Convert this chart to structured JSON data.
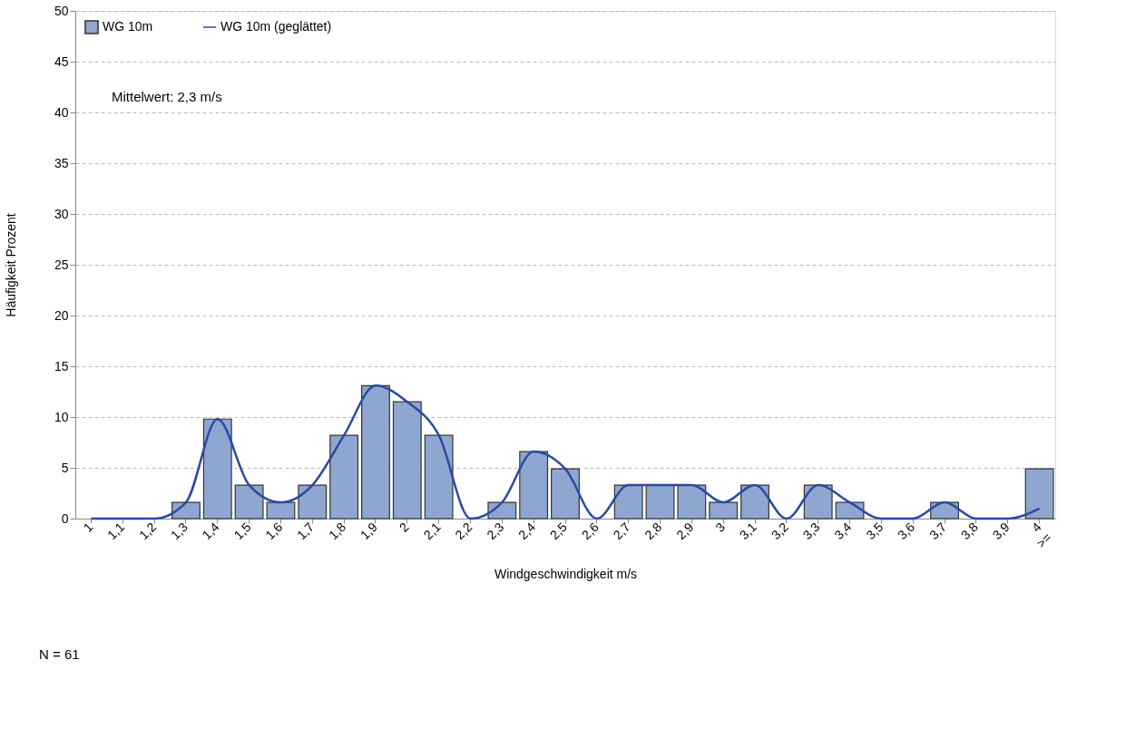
{
  "chart_data": {
    "type": "bar",
    "xlabel": "Windgeschwindigkeit m/s",
    "ylabel": "Häufigkeit Prozent",
    "categories": [
      "1",
      "1,1",
      "1,2",
      "1,3",
      "1,4",
      "1,5",
      "1,6",
      "1,7",
      "1,8",
      "1,9",
      "2",
      "2,1",
      "2,2",
      "2,3",
      "2,4",
      "2,5",
      "2,6",
      "2,7",
      "2,8",
      "2,9",
      "3",
      "3,1",
      "3,2",
      "3,3",
      "3,4",
      "3,5",
      "3,6",
      "3,7",
      "3,8",
      "3,9",
      "4\n>="
    ],
    "series": [
      {
        "name": "WG 10m",
        "color": "#8fa6d0",
        "values": [
          0,
          0,
          0,
          1.6,
          9.8,
          3.3,
          1.6,
          3.3,
          8.2,
          13.1,
          11.5,
          8.2,
          0,
          1.6,
          6.6,
          4.9,
          0,
          3.3,
          3.3,
          3.3,
          1.6,
          3.3,
          0,
          3.3,
          1.6,
          0,
          0,
          1.6,
          0,
          0,
          4.9
        ]
      },
      {
        "name": "WG 10m (geglättet)",
        "type": "line",
        "color": "#2b4aa0",
        "values": [
          0,
          0,
          0,
          1.6,
          9.8,
          3.3,
          1.6,
          3.3,
          8.2,
          13.1,
          11.5,
          8.2,
          0,
          1.6,
          6.6,
          4.9,
          0,
          3.3,
          3.3,
          3.3,
          1.6,
          3.3,
          0,
          3.3,
          1.6,
          0,
          0,
          1.6,
          0,
          0,
          1
        ]
      }
    ],
    "ylim": [
      0,
      50
    ],
    "yticks": [
      0,
      5,
      10,
      15,
      20,
      25,
      30,
      35,
      40,
      45,
      50
    ],
    "grid": "y",
    "legend": "top left",
    "line_style": "solid",
    "marker": "none",
    "annotations": [
      "Mittelwert: 2,3 m/s",
      "N = 61"
    ]
  }
}
